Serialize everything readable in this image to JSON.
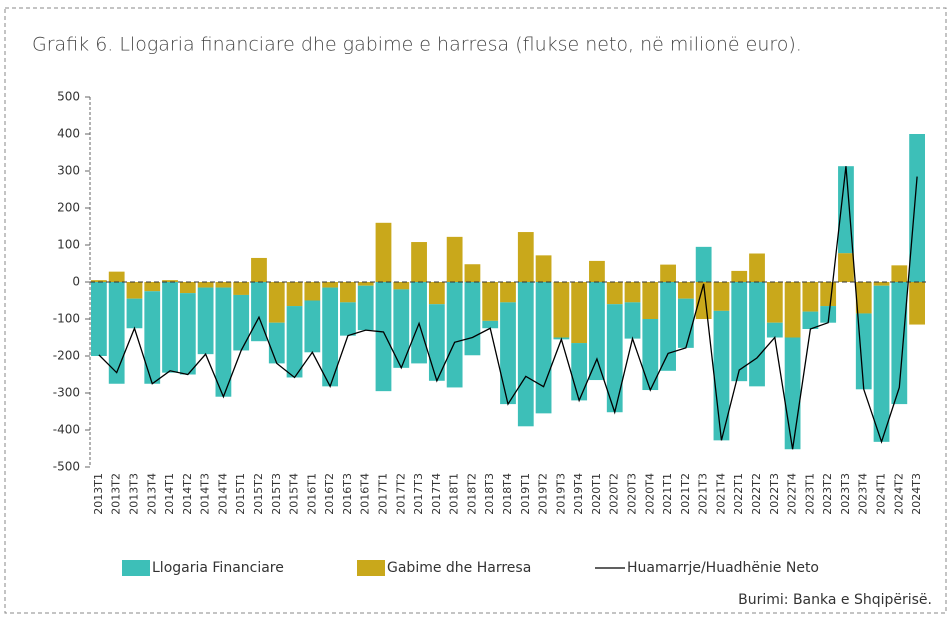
{
  "chart_data": {
    "type": "bar",
    "title": "Grafik 6. Llogaria financiare dhe gabime e harresa (flukse neto, në milionë euro).",
    "source": "Burimi: Banka e Shqipërisë.",
    "categories": [
      "2013T1",
      "2013T2",
      "2013T3",
      "2013T4",
      "2014T1",
      "2014T2",
      "2014T3",
      "2014T4",
      "2015T1",
      "2015T2",
      "2015T3",
      "2015T4",
      "2016T1",
      "2016T2",
      "2016T3",
      "2016T4",
      "2017T1",
      "2017T2",
      "2017T3",
      "2017T4",
      "2018T1",
      "2018T2",
      "2018T3",
      "2018T4",
      "2019T1",
      "2019T2",
      "2019T3",
      "2019T4",
      "2020T1",
      "2020T2",
      "2020T3",
      "2020T4",
      "2021T1",
      "2021T2",
      "2021T3",
      "2021T4",
      "2022T1",
      "2022T2",
      "2022T3",
      "2022T4",
      "2023T1",
      "2023T2",
      "2023T3",
      "2023T4",
      "2024T1",
      "2024T2",
      "2024T3"
    ],
    "series": [
      {
        "name": "Llogaria Financiare",
        "color": "#3dbfb8",
        "values": [
          -200,
          -275,
          -80,
          -250,
          -245,
          -220,
          -180,
          -295,
          -150,
          -160,
          -110,
          -193,
          -140,
          -267,
          -90,
          -120,
          -295,
          -212,
          -220,
          -207,
          -285,
          -198,
          -20,
          -275,
          -390,
          -355,
          -5,
          -155,
          -265,
          -292,
          -98,
          -192,
          -240,
          -133,
          95,
          -350,
          -268,
          -282,
          -40,
          -302,
          -47,
          -45,
          235,
          -205,
          -422,
          -330,
          400
        ]
      },
      {
        "name": "Gabime dhe Harresa",
        "color": "#c9a81b",
        "values": [
          5,
          28,
          -45,
          -25,
          5,
          -30,
          -15,
          -15,
          -35,
          65,
          -110,
          -65,
          -50,
          -15,
          -55,
          -10,
          160,
          -20,
          108,
          -60,
          122,
          48,
          -105,
          -55,
          135,
          72,
          -150,
          -165,
          57,
          -60,
          -55,
          -100,
          47,
          -45,
          -100,
          -78,
          30,
          77,
          -110,
          -150,
          -80,
          -65,
          78,
          -85,
          -10,
          45,
          -115
        ]
      },
      {
        "name": "Huamarrje/Huadhënie Neto",
        "type": "line",
        "color": "#000000",
        "values": [
          -197,
          -245,
          -125,
          -275,
          -240,
          -250,
          -195,
          -310,
          -185,
          -95,
          -220,
          -258,
          -190,
          -282,
          -145,
          -130,
          -135,
          -232,
          -112,
          -267,
          -163,
          -150,
          -125,
          -330,
          -255,
          -283,
          -155,
          -320,
          -208,
          -352,
          -153,
          -292,
          -193,
          -178,
          -5,
          -428,
          -238,
          -205,
          -150,
          -452,
          -127,
          -110,
          313,
          -290,
          -432,
          -285,
          285
        ]
      }
    ],
    "ylim": [
      -500,
      500
    ],
    "yticks": [
      500,
      400,
      300,
      200,
      100,
      0,
      -100,
      -200,
      -300,
      -400,
      -500
    ]
  }
}
